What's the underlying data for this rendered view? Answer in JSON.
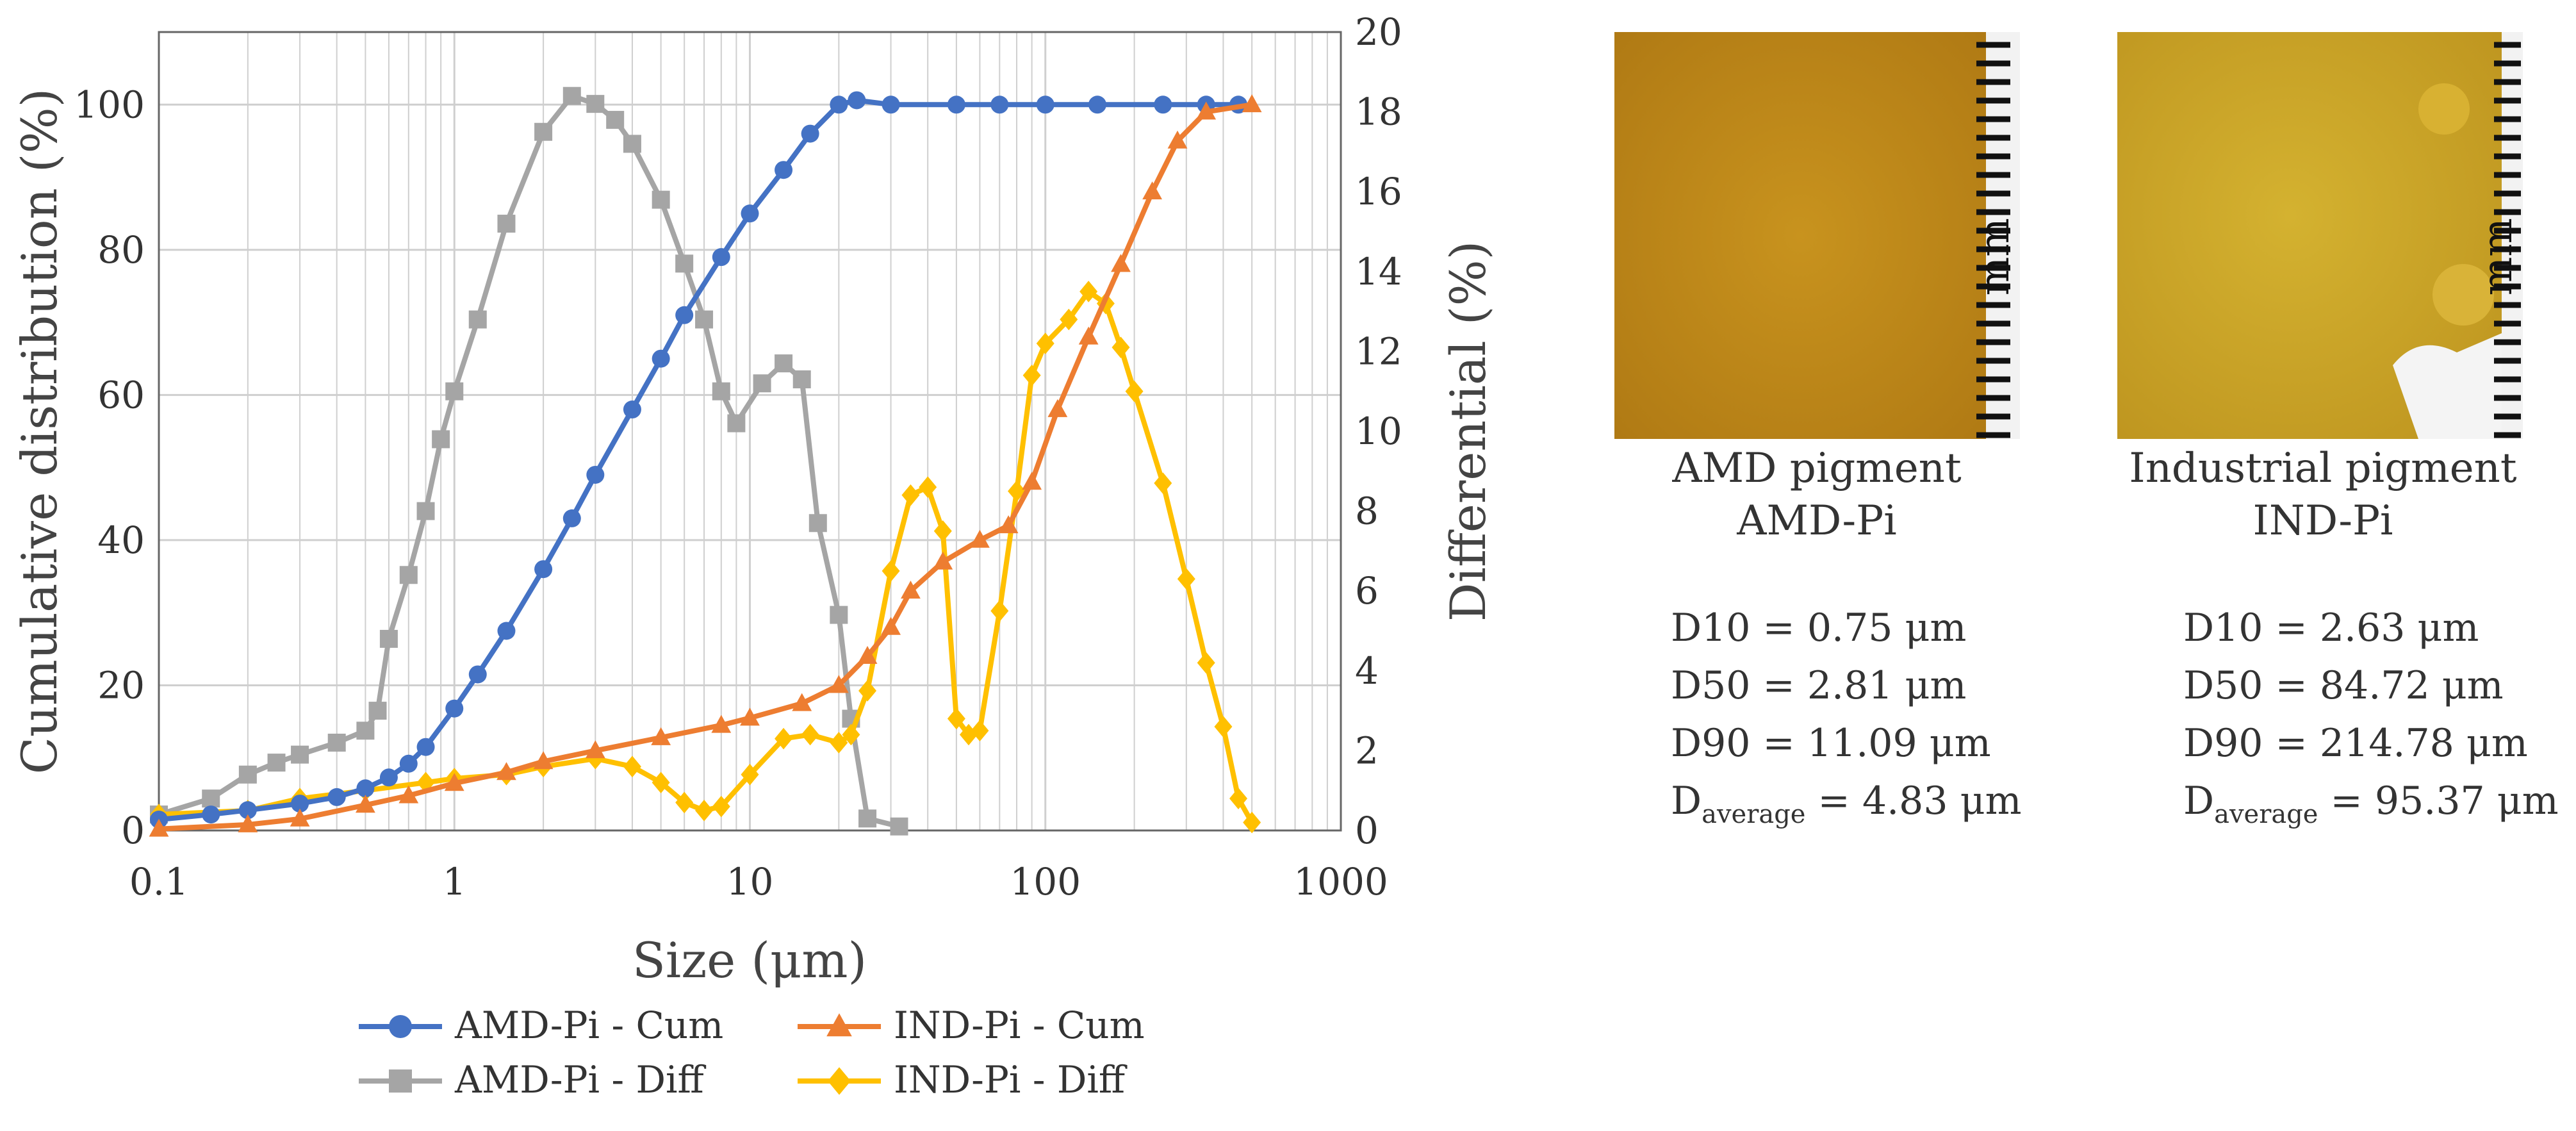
{
  "chart_data": {
    "type": "line",
    "xlabel": "Size (μm)",
    "ylabel_left": "Cumulative distribution (%)",
    "ylabel_right": "Differential (%)",
    "x_scale": "log",
    "xlim": [
      0.1,
      1000
    ],
    "ylim_left": [
      0,
      110
    ],
    "ylim_right": [
      0,
      20
    ],
    "x_ticks": [
      "0.1",
      "1",
      "10",
      "100",
      "1000"
    ],
    "y_ticks_left": [
      "0",
      "20",
      "40",
      "60",
      "80",
      "100"
    ],
    "y_ticks_right": [
      "0",
      "2",
      "4",
      "6",
      "8",
      "10",
      "12",
      "14",
      "16",
      "18",
      "20"
    ],
    "grid": true,
    "legend_position": "bottom",
    "series": [
      {
        "name": "AMD-Pi - Cum",
        "axis": "left",
        "color": "#4472C4",
        "marker": "circle",
        "points": [
          [
            0.1,
            1.5
          ],
          [
            0.15,
            2.2
          ],
          [
            0.2,
            2.8
          ],
          [
            0.3,
            3.7
          ],
          [
            0.4,
            4.6
          ],
          [
            0.5,
            5.8
          ],
          [
            0.6,
            7.3
          ],
          [
            0.7,
            9.2
          ],
          [
            0.8,
            11.5
          ],
          [
            1.0,
            16.8
          ],
          [
            1.2,
            21.5
          ],
          [
            1.5,
            27.5
          ],
          [
            2.0,
            36
          ],
          [
            2.5,
            43
          ],
          [
            3.0,
            49
          ],
          [
            4.0,
            58
          ],
          [
            5.0,
            65
          ],
          [
            6.0,
            71
          ],
          [
            8.0,
            79
          ],
          [
            10.0,
            85
          ],
          [
            13.0,
            91
          ],
          [
            16.0,
            96
          ],
          [
            20.0,
            100
          ],
          [
            23,
            100.6
          ],
          [
            30,
            100
          ],
          [
            50,
            100
          ],
          [
            70,
            100
          ],
          [
            100,
            100
          ],
          [
            150,
            100
          ],
          [
            250,
            100
          ],
          [
            350,
            100
          ],
          [
            450,
            100
          ]
        ]
      },
      {
        "name": "IND-Pi - Cum",
        "axis": "left",
        "color": "#ED7D31",
        "marker": "triangle",
        "points": [
          [
            0.1,
            0.2
          ],
          [
            0.2,
            0.8
          ],
          [
            0.3,
            1.6
          ],
          [
            0.5,
            3.5
          ],
          [
            0.7,
            4.8
          ],
          [
            1.0,
            6.5
          ],
          [
            1.5,
            8.0
          ],
          [
            2.0,
            9.5
          ],
          [
            3.0,
            11.0
          ],
          [
            5.0,
            12.8
          ],
          [
            8.0,
            14.5
          ],
          [
            10.0,
            15.5
          ],
          [
            15.0,
            17.5
          ],
          [
            20.0,
            20
          ],
          [
            25.0,
            24
          ],
          [
            30.0,
            28
          ],
          [
            35.0,
            33
          ],
          [
            45.0,
            37
          ],
          [
            60.0,
            40
          ],
          [
            75.0,
            42
          ],
          [
            90.0,
            48
          ],
          [
            110.0,
            58
          ],
          [
            140.0,
            68
          ],
          [
            180.0,
            78
          ],
          [
            230.0,
            88
          ],
          [
            280.0,
            95
          ],
          [
            350.0,
            99
          ],
          [
            500.0,
            100
          ]
        ]
      },
      {
        "name": "AMD-Pi - Diff",
        "axis": "right",
        "color": "#A5A5A5",
        "marker": "square",
        "points": [
          [
            0.1,
            0.4
          ],
          [
            0.15,
            0.8
          ],
          [
            0.2,
            1.4
          ],
          [
            0.25,
            1.7
          ],
          [
            0.3,
            1.9
          ],
          [
            0.4,
            2.2
          ],
          [
            0.5,
            2.5
          ],
          [
            0.55,
            3.0
          ],
          [
            0.6,
            4.8
          ],
          [
            0.7,
            6.4
          ],
          [
            0.8,
            8.0
          ],
          [
            0.9,
            9.8
          ],
          [
            1.0,
            11.0
          ],
          [
            1.2,
            12.8
          ],
          [
            1.5,
            15.2
          ],
          [
            2.0,
            17.5
          ],
          [
            2.5,
            18.4
          ],
          [
            3.0,
            18.2
          ],
          [
            3.5,
            17.8
          ],
          [
            4.0,
            17.2
          ],
          [
            5.0,
            15.8
          ],
          [
            6.0,
            14.2
          ],
          [
            7.0,
            12.8
          ],
          [
            8.0,
            11.0
          ],
          [
            9.0,
            10.2
          ],
          [
            11.0,
            11.2
          ],
          [
            13.0,
            11.7
          ],
          [
            15.0,
            11.3
          ],
          [
            17.0,
            7.7
          ],
          [
            20.0,
            5.4
          ],
          [
            22.0,
            2.8
          ],
          [
            25.0,
            0.3
          ],
          [
            32.0,
            0.1
          ]
        ]
      },
      {
        "name": "IND-Pi - Diff",
        "axis": "right",
        "color": "#FFC000",
        "marker": "diamond",
        "points": [
          [
            0.1,
            0.4
          ],
          [
            0.2,
            0.5
          ],
          [
            0.3,
            0.8
          ],
          [
            0.5,
            1.0
          ],
          [
            0.8,
            1.2
          ],
          [
            1.0,
            1.3
          ],
          [
            1.5,
            1.4
          ],
          [
            2.0,
            1.6
          ],
          [
            3.0,
            1.8
          ],
          [
            4.0,
            1.6
          ],
          [
            5.0,
            1.2
          ],
          [
            6.0,
            0.7
          ],
          [
            7.0,
            0.5
          ],
          [
            8.0,
            0.6
          ],
          [
            10.0,
            1.4
          ],
          [
            13.0,
            2.3
          ],
          [
            16.0,
            2.4
          ],
          [
            20.0,
            2.2
          ],
          [
            22.0,
            2.4
          ],
          [
            25.0,
            3.5
          ],
          [
            30.0,
            6.5
          ],
          [
            35.0,
            8.4
          ],
          [
            40.0,
            8.6
          ],
          [
            45.0,
            7.5
          ],
          [
            50.0,
            2.8
          ],
          [
            55.0,
            2.4
          ],
          [
            60.0,
            2.5
          ],
          [
            70.0,
            5.5
          ],
          [
            80.0,
            8.5
          ],
          [
            90.0,
            11.4
          ],
          [
            100.0,
            12.2
          ],
          [
            120.0,
            12.8
          ],
          [
            140.0,
            13.5
          ],
          [
            160.0,
            13.2
          ],
          [
            180.0,
            12.1
          ],
          [
            200.0,
            11.0
          ],
          [
            250.0,
            8.7
          ],
          [
            300.0,
            6.3
          ],
          [
            350.0,
            4.2
          ],
          [
            400.0,
            2.6
          ],
          [
            450.0,
            0.8
          ],
          [
            500.0,
            0.2
          ]
        ]
      }
    ]
  },
  "samples": [
    {
      "image": "yellow-pigment-photo",
      "scale_unit": "mm",
      "caption_line1": "AMD pigment",
      "caption_line2": "AMD-Pi",
      "d10": "D10 = 0.75 μm",
      "d50": "D50 = 2.81 μm",
      "d90": "D90 = 11.09 μm",
      "davg_prefix": "D",
      "davg_sub": "average",
      "davg_value": " = 4.83 μm"
    },
    {
      "image": "yellow-pigment-photo",
      "scale_unit": "mm",
      "caption_line1": "Industrial pigment",
      "caption_line2": "IND-Pi",
      "d10": "D10 = 2.63 μm",
      "d50": "D50 = 84.72 μm",
      "d90": "D90 = 214.78 μm",
      "davg_prefix": "D",
      "davg_sub": "average",
      "davg_value": " = 95.37 μm"
    }
  ]
}
